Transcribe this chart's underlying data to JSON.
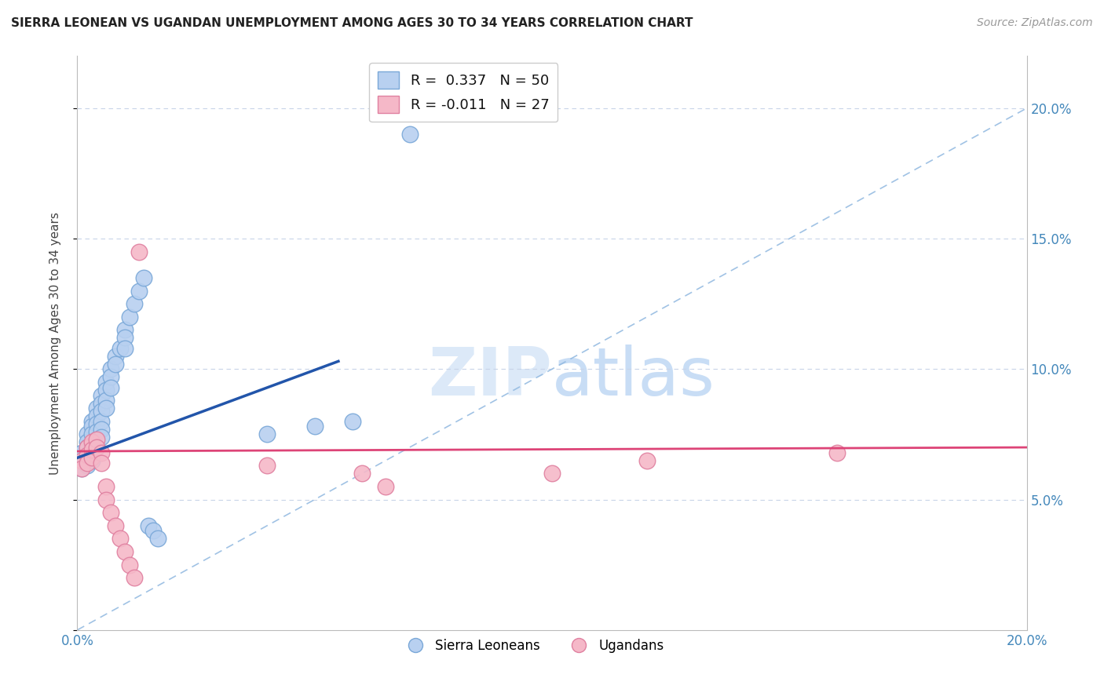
{
  "title": "SIERRA LEONEAN VS UGANDAN UNEMPLOYMENT AMONG AGES 30 TO 34 YEARS CORRELATION CHART",
  "source": "Source: ZipAtlas.com",
  "ylabel": "Unemployment Among Ages 30 to 34 years",
  "xlim": [
    0.0,
    0.2
  ],
  "ylim": [
    0.0,
    0.22
  ],
  "sl_color": "#b8d0f0",
  "sl_edge_color": "#7aA8d8",
  "ug_color": "#f5b8c8",
  "ug_edge_color": "#e080a0",
  "sl_R": 0.337,
  "sl_N": 50,
  "ug_R": -0.011,
  "ug_N": 27,
  "sl_line_color": "#2255aa",
  "ug_line_color": "#dd4477",
  "diag_line_color": "#90b8e0",
  "background_color": "#ffffff",
  "grid_color": "#c8d4e8",
  "sl_x": [
    0.001,
    0.001,
    0.001,
    0.002,
    0.002,
    0.002,
    0.002,
    0.002,
    0.003,
    0.003,
    0.003,
    0.003,
    0.003,
    0.003,
    0.004,
    0.004,
    0.004,
    0.004,
    0.004,
    0.004,
    0.005,
    0.005,
    0.005,
    0.005,
    0.005,
    0.005,
    0.006,
    0.006,
    0.006,
    0.006,
    0.007,
    0.007,
    0.007,
    0.008,
    0.008,
    0.009,
    0.01,
    0.01,
    0.01,
    0.011,
    0.012,
    0.013,
    0.014,
    0.015,
    0.016,
    0.017,
    0.04,
    0.05,
    0.058,
    0.07
  ],
  "sl_y": [
    0.068,
    0.065,
    0.062,
    0.075,
    0.072,
    0.07,
    0.067,
    0.063,
    0.08,
    0.078,
    0.075,
    0.071,
    0.068,
    0.065,
    0.085,
    0.082,
    0.079,
    0.076,
    0.073,
    0.07,
    0.09,
    0.087,
    0.084,
    0.08,
    0.077,
    0.074,
    0.095,
    0.092,
    0.088,
    0.085,
    0.1,
    0.097,
    0.093,
    0.105,
    0.102,
    0.108,
    0.115,
    0.112,
    0.108,
    0.12,
    0.125,
    0.13,
    0.135,
    0.04,
    0.038,
    0.035,
    0.075,
    0.078,
    0.08,
    0.19
  ],
  "ug_x": [
    0.001,
    0.001,
    0.002,
    0.002,
    0.002,
    0.003,
    0.003,
    0.003,
    0.004,
    0.004,
    0.005,
    0.005,
    0.006,
    0.006,
    0.007,
    0.008,
    0.009,
    0.01,
    0.011,
    0.012,
    0.013,
    0.04,
    0.06,
    0.065,
    0.1,
    0.12,
    0.16
  ],
  "ug_y": [
    0.065,
    0.062,
    0.07,
    0.067,
    0.064,
    0.072,
    0.069,
    0.066,
    0.073,
    0.07,
    0.068,
    0.064,
    0.055,
    0.05,
    0.045,
    0.04,
    0.035,
    0.03,
    0.025,
    0.02,
    0.145,
    0.063,
    0.06,
    0.055,
    0.06,
    0.065,
    0.068
  ],
  "sl_line_x0": 0.0,
  "sl_line_y0": 0.066,
  "sl_line_x1": 0.055,
  "sl_line_y1": 0.103,
  "ug_line_x0": 0.0,
  "ug_line_y0": 0.0685,
  "ug_line_x1": 0.2,
  "ug_line_y1": 0.07
}
